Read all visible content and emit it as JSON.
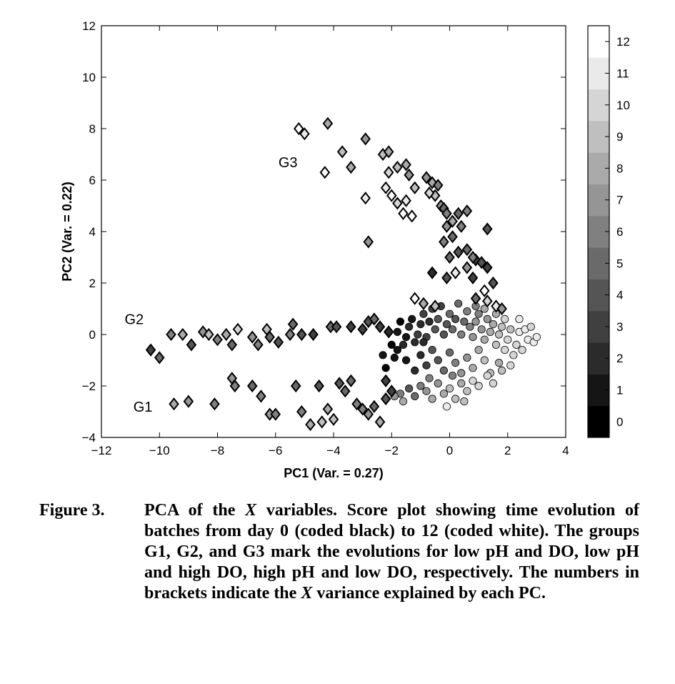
{
  "chart_data": {
    "type": "scatter",
    "xlabel": "PC1  (Var. = 0.27)",
    "ylabel": "PC2  (Var. = 0.22)",
    "xlim": [
      -12,
      4
    ],
    "ylim": [
      -4,
      12
    ],
    "x_ticks": [
      -12,
      -10,
      -8,
      -6,
      -4,
      -2,
      0,
      2,
      4
    ],
    "y_ticks": [
      -4,
      -2,
      0,
      2,
      4,
      6,
      8,
      10,
      12
    ],
    "grid": false,
    "colorbar": {
      "ticks": [
        0,
        1,
        2,
        3,
        4,
        5,
        6,
        7,
        8,
        9,
        10,
        11,
        12
      ],
      "range": [
        0,
        12
      ],
      "from_color": "#000000",
      "to_color": "#ffffff"
    },
    "annotations": [
      {
        "text": "G1",
        "x": -10.9,
        "y": -3.0
      },
      {
        "text": "G2",
        "x": -11.2,
        "y": 0.4
      },
      {
        "text": "G3",
        "x": -5.9,
        "y": 6.5
      }
    ],
    "series": [
      {
        "marker": "diamond",
        "points": [
          [
            -10.3,
            -0.6,
            3
          ],
          [
            -10.0,
            -0.9,
            5
          ],
          [
            -9.6,
            0.0,
            6
          ],
          [
            -9.2,
            0.0,
            8
          ],
          [
            -8.9,
            -0.4,
            4
          ],
          [
            -8.5,
            0.1,
            7
          ],
          [
            -8.3,
            0.0,
            9
          ],
          [
            -8.0,
            -0.2,
            6
          ],
          [
            -7.7,
            0.0,
            8
          ],
          [
            -7.5,
            -0.4,
            5
          ],
          [
            -7.3,
            0.2,
            10
          ],
          [
            -6.8,
            -0.1,
            7
          ],
          [
            -6.6,
            -0.4,
            6
          ],
          [
            -6.3,
            0.2,
            9
          ],
          [
            -6.2,
            -0.1,
            5
          ],
          [
            -5.9,
            -0.3,
            4
          ],
          [
            -5.5,
            0.0,
            6
          ],
          [
            -5.4,
            0.4,
            5
          ],
          [
            -5.1,
            0.0,
            4
          ],
          [
            -4.7,
            0.0,
            3
          ],
          [
            -4.1,
            0.3,
            5
          ],
          [
            -3.9,
            0.3,
            4
          ],
          [
            -3.4,
            0.3,
            3
          ],
          [
            -3.0,
            0.2,
            3
          ],
          [
            -2.8,
            0.5,
            4
          ],
          [
            -2.6,
            0.6,
            5
          ],
          [
            -2.1,
            0.1,
            2
          ],
          [
            -2.4,
            0.3,
            3
          ],
          [
            -9.5,
            -2.7,
            8
          ],
          [
            -9.0,
            -2.6,
            7
          ],
          [
            -8.1,
            -2.7,
            6
          ],
          [
            -7.5,
            -1.7,
            7
          ],
          [
            -7.4,
            -2.0,
            6
          ],
          [
            -6.8,
            -2.0,
            5
          ],
          [
            -6.5,
            -2.4,
            6
          ],
          [
            -6.2,
            -3.1,
            7
          ],
          [
            -6.0,
            -3.1,
            6
          ],
          [
            -5.3,
            -2.0,
            5
          ],
          [
            -5.1,
            -3.0,
            6
          ],
          [
            -4.8,
            -3.5,
            8
          ],
          [
            -4.5,
            -2.0,
            4
          ],
          [
            -4.4,
            -3.4,
            9
          ],
          [
            -4.2,
            -2.9,
            8
          ],
          [
            -4.0,
            -3.3,
            9
          ],
          [
            -3.8,
            -1.9,
            4
          ],
          [
            -3.6,
            -2.2,
            5
          ],
          [
            -3.4,
            -1.8,
            5
          ],
          [
            -3.2,
            -2.7,
            6
          ],
          [
            -3.0,
            -2.9,
            6
          ],
          [
            -2.8,
            -3.1,
            7
          ],
          [
            -2.6,
            -2.8,
            5
          ],
          [
            -2.4,
            -3.4,
            8
          ],
          [
            -2.2,
            -2.5,
            4
          ],
          [
            -2.0,
            -2.2,
            3
          ],
          [
            -2.2,
            -1.8,
            3
          ],
          [
            -5.2,
            8.0,
            12
          ],
          [
            -5.0,
            7.8,
            11
          ],
          [
            -4.2,
            8.2,
            8
          ],
          [
            -4.3,
            6.3,
            12
          ],
          [
            -3.7,
            7.1,
            9
          ],
          [
            -3.4,
            6.5,
            8
          ],
          [
            -2.9,
            7.6,
            7
          ],
          [
            -2.3,
            7.0,
            9
          ],
          [
            -2.1,
            7.1,
            8
          ],
          [
            -2.1,
            6.3,
            10
          ],
          [
            -1.8,
            6.5,
            9
          ],
          [
            -1.5,
            6.6,
            8
          ],
          [
            -1.4,
            6.2,
            7
          ],
          [
            -2.2,
            5.7,
            11
          ],
          [
            -2.0,
            5.4,
            12
          ],
          [
            -1.8,
            5.1,
            10
          ],
          [
            -1.5,
            5.2,
            11
          ],
          [
            -1.2,
            5.7,
            9
          ],
          [
            -1.6,
            4.7,
            12
          ],
          [
            -1.3,
            4.6,
            12
          ],
          [
            -2.9,
            5.3,
            11
          ],
          [
            -2.8,
            3.6,
            7
          ],
          [
            -0.8,
            6.1,
            7
          ],
          [
            -0.6,
            5.9,
            8
          ],
          [
            -0.4,
            5.8,
            6
          ],
          [
            -0.5,
            5.4,
            9
          ],
          [
            -0.7,
            5.5,
            10
          ],
          [
            -0.3,
            5.0,
            7
          ],
          [
            -0.2,
            4.9,
            5
          ],
          [
            -0.1,
            4.7,
            6
          ],
          [
            0.3,
            4.7,
            5
          ],
          [
            0.6,
            4.8,
            6
          ],
          [
            -0.1,
            4.2,
            7
          ],
          [
            0.1,
            4.4,
            8
          ],
          [
            0.4,
            4.2,
            6
          ],
          [
            0.1,
            3.8,
            5
          ],
          [
            -0.2,
            3.6,
            6
          ],
          [
            0.3,
            3.2,
            4
          ],
          [
            0.0,
            3.0,
            5
          ],
          [
            0.6,
            3.3,
            5
          ],
          [
            1.3,
            4.1,
            4
          ],
          [
            0.9,
            2.9,
            3
          ],
          [
            0.8,
            3.0,
            6
          ],
          [
            1.1,
            2.8,
            4
          ],
          [
            1.3,
            2.6,
            3
          ],
          [
            0.6,
            2.6,
            7
          ],
          [
            0.2,
            2.4,
            11
          ],
          [
            -0.6,
            2.4,
            2
          ],
          [
            -0.1,
            2.2,
            4
          ],
          [
            0.8,
            2.2,
            3
          ],
          [
            1.5,
            2.0,
            4
          ],
          [
            1.2,
            1.7,
            12
          ],
          [
            1.6,
            1.1,
            11
          ],
          [
            1.3,
            1.3,
            10
          ],
          [
            0.9,
            1.4,
            5
          ],
          [
            -1.2,
            1.4,
            12
          ],
          [
            -0.9,
            1.2,
            8
          ],
          [
            -0.5,
            1.1,
            9
          ],
          [
            1.8,
            1.0,
            7
          ]
        ]
      },
      {
        "marker": "circle",
        "points": [
          [
            -2.2,
            -1.3,
            0
          ],
          [
            -1.9,
            -0.9,
            1
          ],
          [
            -1.8,
            -0.6,
            1
          ],
          [
            -1.6,
            -0.4,
            2
          ],
          [
            -1.5,
            -0.1,
            1
          ],
          [
            -1.4,
            0.3,
            2
          ],
          [
            -1.3,
            0.6,
            1
          ],
          [
            -1.2,
            -0.3,
            2
          ],
          [
            -1.1,
            0.0,
            3
          ],
          [
            -1.0,
            0.4,
            2
          ],
          [
            -0.9,
            0.8,
            3
          ],
          [
            -0.8,
            -0.1,
            3
          ],
          [
            -0.7,
            0.5,
            2
          ],
          [
            -0.6,
            1.0,
            3
          ],
          [
            -0.5,
            0.2,
            4
          ],
          [
            -0.4,
            0.6,
            4
          ],
          [
            -0.3,
            1.1,
            3
          ],
          [
            -0.2,
            0.0,
            4
          ],
          [
            -0.1,
            0.4,
            4
          ],
          [
            0.0,
            0.8,
            5
          ],
          [
            0.1,
            0.2,
            5
          ],
          [
            0.2,
            0.6,
            4
          ],
          [
            0.3,
            1.2,
            5
          ],
          [
            0.4,
            0.0,
            6
          ],
          [
            0.5,
            0.5,
            5
          ],
          [
            0.6,
            0.9,
            6
          ],
          [
            0.7,
            0.3,
            6
          ],
          [
            0.8,
            -0.1,
            7
          ],
          [
            0.9,
            0.5,
            7
          ],
          [
            1.0,
            0.8,
            6
          ],
          [
            1.1,
            0.2,
            7
          ],
          [
            1.2,
            -0.2,
            8
          ],
          [
            1.3,
            0.6,
            7
          ],
          [
            1.4,
            0.1,
            8
          ],
          [
            1.5,
            0.4,
            8
          ],
          [
            1.6,
            -0.4,
            9
          ],
          [
            1.7,
            0.0,
            9
          ],
          [
            1.8,
            0.3,
            9
          ],
          [
            1.9,
            -0.6,
            10
          ],
          [
            2.0,
            -0.2,
            10
          ],
          [
            2.1,
            0.2,
            9
          ],
          [
            2.2,
            -0.8,
            10
          ],
          [
            2.3,
            -0.4,
            10
          ],
          [
            2.4,
            0.1,
            11
          ],
          [
            2.5,
            -0.6,
            10
          ],
          [
            2.6,
            0.2,
            11
          ],
          [
            2.7,
            -0.2,
            11
          ],
          [
            2.8,
            0.3,
            10
          ],
          [
            2.9,
            -0.3,
            11
          ],
          [
            3.0,
            -0.1,
            11
          ],
          [
            -1.5,
            -1.0,
            1
          ],
          [
            -1.2,
            -1.4,
            2
          ],
          [
            -1.0,
            -0.8,
            2
          ],
          [
            -0.8,
            -1.2,
            3
          ],
          [
            -0.6,
            -0.6,
            4
          ],
          [
            -0.4,
            -1.0,
            4
          ],
          [
            -0.2,
            -1.4,
            5
          ],
          [
            0.0,
            -0.7,
            5
          ],
          [
            0.2,
            -1.1,
            6
          ],
          [
            0.4,
            -1.5,
            7
          ],
          [
            0.6,
            -0.9,
            7
          ],
          [
            0.8,
            -1.3,
            8
          ],
          [
            1.0,
            -0.6,
            8
          ],
          [
            1.2,
            -1.0,
            9
          ],
          [
            1.4,
            -1.5,
            9
          ],
          [
            -1.4,
            -2.1,
            4
          ],
          [
            -1.2,
            -2.4,
            5
          ],
          [
            -1.0,
            -2.0,
            6
          ],
          [
            -0.8,
            -2.2,
            7
          ],
          [
            -0.6,
            -2.5,
            8
          ],
          [
            -0.4,
            -1.9,
            7
          ],
          [
            -0.2,
            -2.3,
            8
          ],
          [
            0.0,
            -2.1,
            9
          ],
          [
            0.2,
            -2.5,
            9
          ],
          [
            0.4,
            -1.9,
            8
          ],
          [
            0.6,
            -2.2,
            9
          ],
          [
            0.8,
            -1.8,
            10
          ],
          [
            1.0,
            -2.0,
            10
          ],
          [
            1.3,
            -1.6,
            10
          ],
          [
            1.5,
            -1.9,
            10
          ],
          [
            -1.7,
            -2.3,
            6
          ],
          [
            -1.9,
            -2.4,
            7
          ],
          [
            -1.6,
            -2.6,
            8
          ],
          [
            -0.1,
            -2.8,
            11
          ],
          [
            0.5,
            -2.6,
            9
          ],
          [
            1.8,
            -1.4,
            9
          ],
          [
            2.1,
            -1.2,
            10
          ],
          [
            1.7,
            -1.1,
            8
          ],
          [
            -0.7,
            -1.7,
            6
          ],
          [
            0.1,
            -1.6,
            6
          ],
          [
            -2.3,
            -0.8,
            1
          ],
          [
            -2.0,
            -0.4,
            0
          ],
          [
            -1.8,
            0.1,
            1
          ],
          [
            -1.7,
            0.5,
            0
          ],
          [
            -0.9,
            -0.3,
            2
          ],
          [
            0.9,
            1.1,
            6
          ],
          [
            1.2,
            1.0,
            8
          ],
          [
            1.6,
            0.8,
            8
          ],
          [
            1.9,
            0.6,
            10
          ],
          [
            2.4,
            0.6,
            11
          ]
        ]
      }
    ]
  },
  "caption": {
    "label": "Figure 3.",
    "text_html": "PCA of the <i>X</i> variables. Score plot showing time evolution of batches from day 0 (coded black) to 12 (coded white). The groups G1, G2, and G3 mark the evolutions for low pH and DO, low pH and high DO, high pH and low DO, respectively. The numbers in brackets indicate the <i>X</i> variance explained by each PC."
  }
}
